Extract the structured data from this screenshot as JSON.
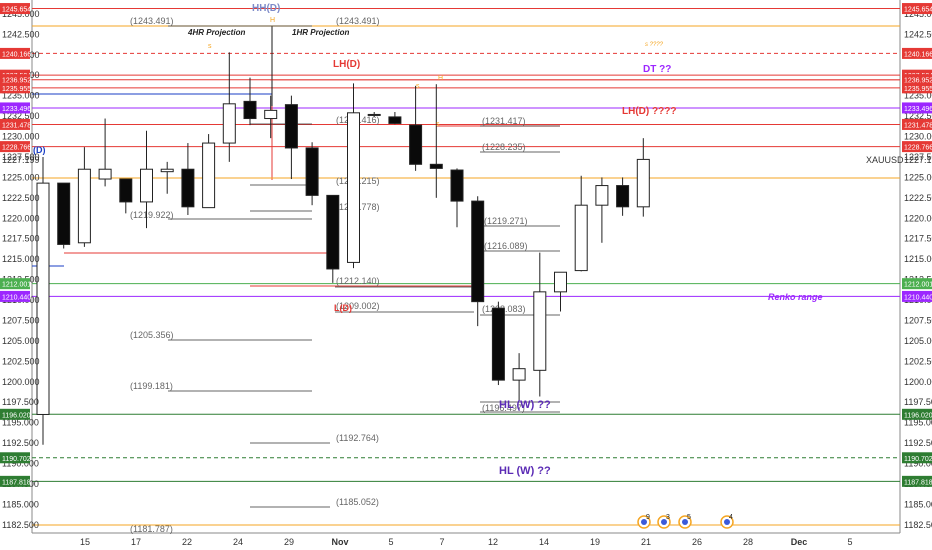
{
  "symbol": "XAUUSD",
  "last_price": "1227.199",
  "chart_data": {
    "type": "candlestick",
    "ylim": [
      1181.5,
      1246.7
    ],
    "grid": false,
    "x_ticks": [
      "15",
      "17",
      "22",
      "24",
      "29",
      "Nov",
      "5",
      "7",
      "12",
      "14",
      "19",
      "21",
      "26",
      "28",
      "Dec",
      "5"
    ],
    "y_ticks": [
      "1182.500",
      "1185.000",
      "1187.500",
      "1190.000",
      "1192.500",
      "1195.000",
      "1197.500",
      "1200.000",
      "1202.500",
      "1205.000",
      "1207.500",
      "1210.000",
      "1212.500",
      "1215.000",
      "1217.500",
      "1220.000",
      "1222.500",
      "1225.000",
      "1227.500",
      "1230.000",
      "1232.500",
      "1235.000",
      "1237.500",
      "1240.000",
      "1242.500",
      "1245.000"
    ],
    "candles": [
      {
        "o": 1196.0,
        "h": 1227.5,
        "l": 1192.3,
        "c": 1224.3
      },
      {
        "o": 1224.3,
        "h": 1224.3,
        "l": 1216.3,
        "c": 1216.8
      },
      {
        "o": 1217.0,
        "h": 1228.7,
        "l": 1216.5,
        "c": 1226.0
      },
      {
        "o": 1224.8,
        "h": 1232.2,
        "l": 1223.9,
        "c": 1226.0
      },
      {
        "o": 1224.8,
        "h": 1224.8,
        "l": 1220.6,
        "c": 1222.0
      },
      {
        "o": 1222.0,
        "h": 1230.7,
        "l": 1218.8,
        "c": 1226.0
      },
      {
        "o": 1225.7,
        "h": 1226.9,
        "l": 1223.0,
        "c": 1226.0
      },
      {
        "o": 1226.0,
        "h": 1229.2,
        "l": 1220.4,
        "c": 1221.4
      },
      {
        "o": 1221.3,
        "h": 1230.3,
        "l": 1221.3,
        "c": 1229.2
      },
      {
        "o": 1229.2,
        "h": 1240.3,
        "l": 1226.9,
        "c": 1234.0
      },
      {
        "o": 1234.3,
        "h": 1237.2,
        "l": 1231.4,
        "c": 1232.2
      },
      {
        "o": 1232.2,
        "h": 1235.0,
        "l": 1229.8,
        "c": 1233.2
      },
      {
        "o": 1233.9,
        "h": 1235.0,
        "l": 1224.8,
        "c": 1228.6
      },
      {
        "o": 1228.6,
        "h": 1229.3,
        "l": 1221.6,
        "c": 1222.8
      },
      {
        "o": 1222.8,
        "h": 1222.8,
        "l": 1212.1,
        "c": 1213.8
      },
      {
        "o": 1214.6,
        "h": 1236.5,
        "l": 1213.9,
        "c": 1232.9
      },
      {
        "o": 1232.6,
        "h": 1233.0,
        "l": 1232.4,
        "c": 1232.7
      },
      {
        "o": 1232.4,
        "h": 1233.0,
        "l": 1231.5,
        "c": 1231.6
      },
      {
        "o": 1231.4,
        "h": 1236.2,
        "l": 1225.8,
        "c": 1226.6
      },
      {
        "o": 1226.6,
        "h": 1236.4,
        "l": 1222.5,
        "c": 1226.1
      },
      {
        "o": 1225.9,
        "h": 1226.1,
        "l": 1218.9,
        "c": 1222.1
      },
      {
        "o": 1222.1,
        "h": 1222.7,
        "l": 1206.8,
        "c": 1209.8
      },
      {
        "o": 1209.0,
        "h": 1209.8,
        "l": 1199.6,
        "c": 1200.2
      },
      {
        "o": 1200.2,
        "h": 1203.5,
        "l": 1197.7,
        "c": 1201.6
      },
      {
        "o": 1201.4,
        "h": 1215.8,
        "l": 1198.2,
        "c": 1211.0
      },
      {
        "o": 1211.0,
        "h": 1213.2,
        "l": 1208.6,
        "c": 1213.4
      },
      {
        "o": 1213.6,
        "h": 1225.2,
        "l": 1213.5,
        "c": 1221.6
      },
      {
        "o": 1221.6,
        "h": 1225.0,
        "l": 1217.0,
        "c": 1224.0
      },
      {
        "o": 1224.0,
        "h": 1225.0,
        "l": 1220.3,
        "c": 1221.4
      },
      {
        "o": 1221.4,
        "h": 1229.8,
        "l": 1220.2,
        "c": 1227.2
      }
    ],
    "levels": [
      {
        "price": 1245.654,
        "label": "1245.654",
        "color": "#e53935",
        "style": "solid"
      },
      {
        "price": 1240.166,
        "label": "1240.166",
        "color": "#e53935",
        "style": "dashed"
      },
      {
        "price": 1237.504,
        "label": "1237.504",
        "color": "#e53935",
        "style": "solid"
      },
      {
        "price": 1236.952,
        "label": "1236.952",
        "color": "#e53935",
        "style": "solid"
      },
      {
        "price": 1235.955,
        "label": "1235.955",
        "color": "#e53935",
        "style": "solid"
      },
      {
        "price": 1233.496,
        "label": "1233.496",
        "color": "#9c27ff",
        "style": "solid"
      },
      {
        "price": 1231.478,
        "label": "1231.478",
        "color": "#e53935",
        "style": "solid"
      },
      {
        "price": 1228.766,
        "label": "1228.766",
        "color": "#e53935",
        "style": "solid"
      },
      {
        "price": 1212.001,
        "label": "1212.001",
        "color": "#4caf50",
        "style": "solid"
      },
      {
        "price": 1210.44,
        "label": "1210.440",
        "color": "#9c27ff",
        "style": "solid"
      },
      {
        "price": 1196.02,
        "label": "1196.020",
        "color": "#2e7d32",
        "style": "solid"
      },
      {
        "price": 1190.702,
        "label": "1190.702",
        "color": "#2e7d32",
        "style": "dashed"
      },
      {
        "price": 1187.818,
        "label": "1187.818",
        "color": "#2e7d32",
        "style": "solid"
      }
    ],
    "fib_labels": [
      "(1243.491)",
      "(1243.491)",
      "(1231.417)",
      "(1228.235)",
      "(1219.922)",
      "(1219.271)",
      "(1216.089)",
      "(1212.140)",
      "(1209.002)",
      "(1205.356)",
      "(1199.181)",
      "(1192.764)",
      "(1185.052)",
      "(1181.787)",
      "(1231.416)",
      "(1225.215)",
      "(1221.778)",
      "(1208.083)",
      "(1196.497)"
    ],
    "annotations": [
      "HH(D)",
      "4HR Projection",
      "1HR Projection",
      "LH(D)",
      "DT ??",
      "LH(D) ????",
      "Renko range",
      "HL (W) ??",
      "HL (W) ??",
      "L(D)",
      "(D)",
      "s ????"
    ],
    "event_counts": [
      "9",
      "3",
      "5",
      "4"
    ]
  },
  "colors": {
    "red": "#e53935",
    "purple": "#9c27ff",
    "navy_purple": "#5b2bb5",
    "green": "#4caf50",
    "dark_green": "#2e7d32",
    "orange": "#f5a623",
    "blue": "#1a3ec4",
    "label_red": "#ff1a1a"
  }
}
